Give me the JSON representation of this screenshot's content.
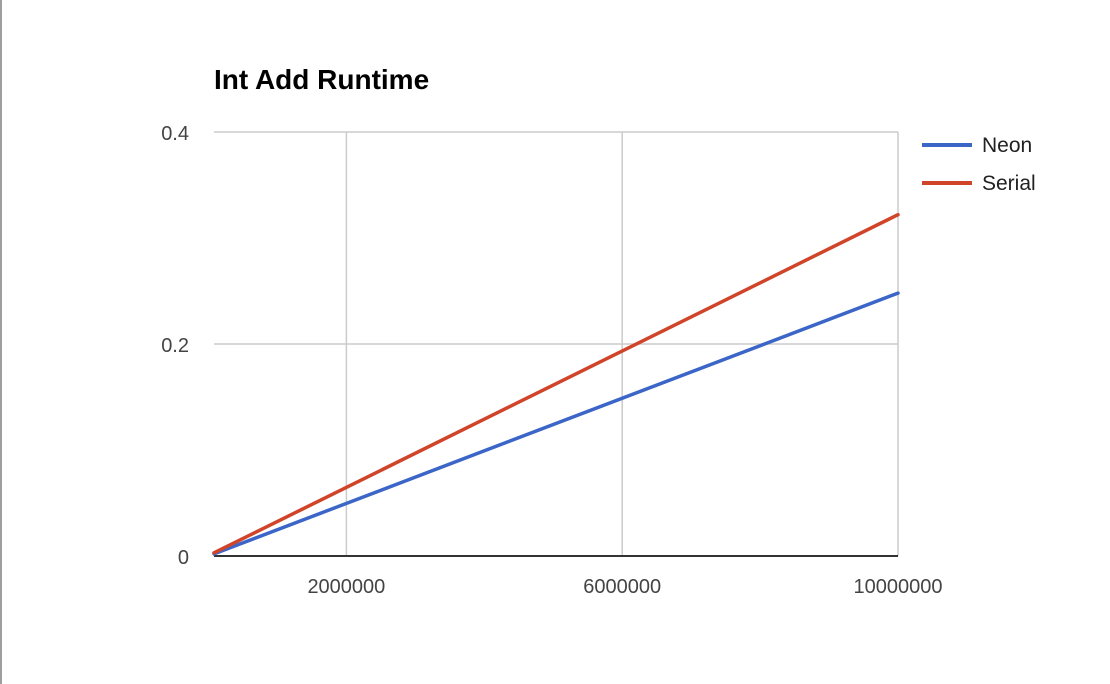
{
  "chart_data": {
    "type": "line",
    "title": "Int Add Runtime",
    "xlabel": "",
    "ylabel": "",
    "xlim": [
      80000,
      10000000
    ],
    "ylim": [
      0,
      0.4
    ],
    "x_ticks": [
      {
        "value": 2000000,
        "label": "2000000"
      },
      {
        "value": 6000000,
        "label": "6000000"
      },
      {
        "value": 10000000,
        "label": "10000000"
      }
    ],
    "y_ticks": [
      {
        "value": 0,
        "label": "0"
      },
      {
        "value": 0.2,
        "label": "0.2"
      },
      {
        "value": 0.4,
        "label": "0.4"
      }
    ],
    "grid": true,
    "legend_position": "right",
    "x": [
      80000,
      10000000
    ],
    "series": [
      {
        "name": "Neon",
        "color": "#3b66c8",
        "values": [
          0.002,
          0.248
        ]
      },
      {
        "name": "Serial",
        "color": "#d0442a",
        "values": [
          0.003,
          0.322
        ]
      }
    ]
  }
}
